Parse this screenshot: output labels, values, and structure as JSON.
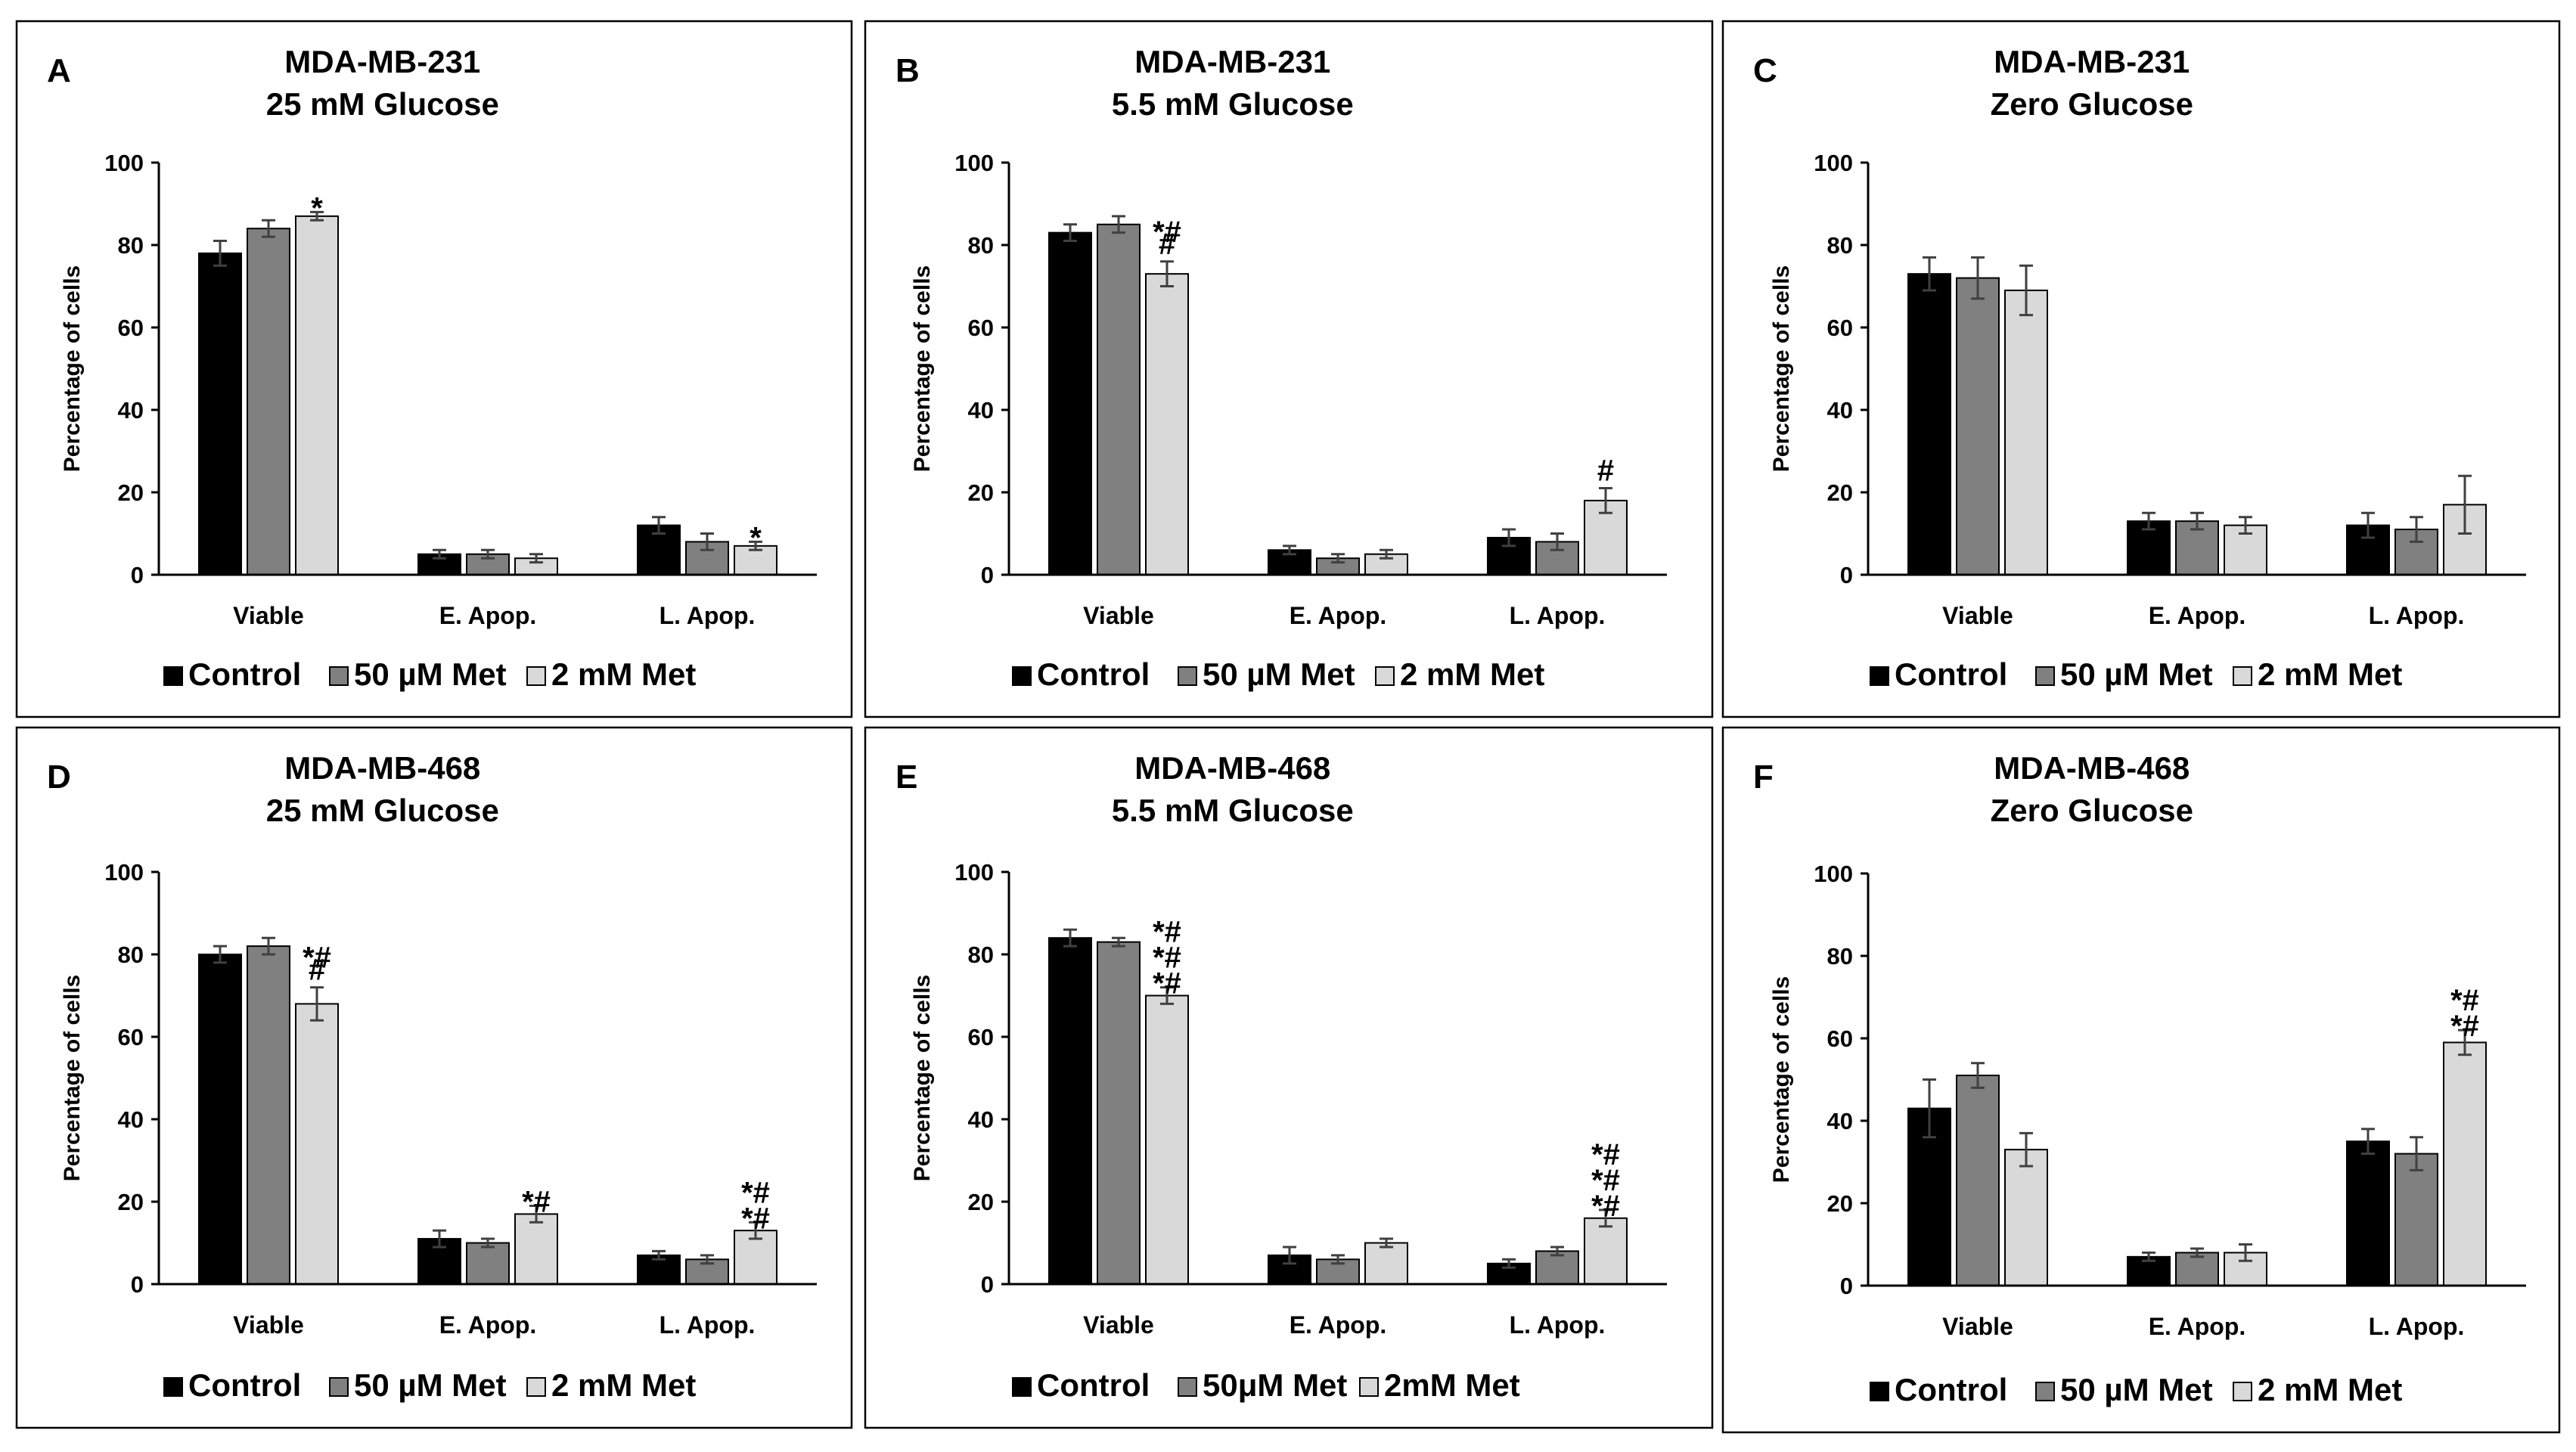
{
  "figure": {
    "colors": {
      "control": "#000000",
      "met_low": "#808080",
      "met_high": "#d9d9d9"
    }
  },
  "chart_data": [
    {
      "type": "bar",
      "letter": "A",
      "title": [
        "MDA-MB-231",
        "25 mM Glucose"
      ],
      "ylabel": "Percentage of cells",
      "ylim": [
        0,
        100
      ],
      "yticks": [
        "0",
        "20",
        "40",
        "60",
        "80",
        "100"
      ],
      "categories": [
        "Viable",
        "E. Apop.",
        "L. Apop."
      ],
      "series": [
        {
          "name": "Control",
          "values": [
            78,
            5,
            12
          ],
          "errors": [
            3,
            1,
            2
          ]
        },
        {
          "name": "50 µM Met",
          "values": [
            84,
            5,
            8
          ],
          "errors": [
            2,
            1,
            2
          ]
        },
        {
          "name": "2 mM Met",
          "values": [
            87,
            4,
            7
          ],
          "errors": [
            1,
            1,
            1
          ]
        }
      ],
      "annotations": [
        {
          "category": 0,
          "series": 2,
          "label": "*"
        },
        {
          "category": 2,
          "series": 2,
          "label": "*"
        }
      ]
    },
    {
      "type": "bar",
      "letter": "B",
      "title": [
        "MDA-MB-231",
        "5.5 mM Glucose"
      ],
      "ylabel": "Percentage of cells",
      "ylim": [
        0,
        100
      ],
      "yticks": [
        "0",
        "20",
        "40",
        "60",
        "80",
        "100"
      ],
      "categories": [
        "Viable",
        "E. Apop.",
        "L. Apop."
      ],
      "series": [
        {
          "name": "Control",
          "values": [
            83,
            6,
            9
          ],
          "errors": [
            2,
            1,
            2
          ]
        },
        {
          "name": "50 µM Met",
          "values": [
            85,
            4,
            8
          ],
          "errors": [
            2,
            1,
            2
          ]
        },
        {
          "name": "2 mM Met",
          "values": [
            73,
            5,
            18
          ],
          "errors": [
            3,
            1,
            3
          ]
        }
      ],
      "annotations": [
        {
          "category": 0,
          "series": 2,
          "label": "*##"
        },
        {
          "category": 2,
          "series": 2,
          "label": "#"
        }
      ]
    },
    {
      "type": "bar",
      "letter": "C",
      "title": [
        "MDA-MB-231",
        "Zero Glucose"
      ],
      "ylabel": "Percentage of cells",
      "ylim": [
        0,
        100
      ],
      "yticks": [
        "0",
        "20",
        "40",
        "60",
        "80",
        "100"
      ],
      "categories": [
        "Viable",
        "E. Apop.",
        "L. Apop."
      ],
      "series": [
        {
          "name": "Control",
          "values": [
            73,
            13,
            12
          ],
          "errors": [
            4,
            2,
            3
          ]
        },
        {
          "name": "50 µM Met",
          "values": [
            72,
            13,
            11
          ],
          "errors": [
            5,
            2,
            3
          ]
        },
        {
          "name": "2 mM Met",
          "values": [
            69,
            12,
            17
          ],
          "errors": [
            6,
            2,
            7
          ]
        }
      ],
      "annotations": []
    },
    {
      "type": "bar",
      "letter": "D",
      "title": [
        "MDA-MB-468",
        "25 mM Glucose"
      ],
      "ylabel": "Percentage of cells",
      "ylim": [
        0,
        100
      ],
      "yticks": [
        "0",
        "20",
        "40",
        "60",
        "80",
        "100"
      ],
      "categories": [
        "Viable",
        "E. Apop.",
        "L. Apop."
      ],
      "series": [
        {
          "name": "Control",
          "values": [
            80,
            11,
            7
          ],
          "errors": [
            2,
            2,
            1
          ]
        },
        {
          "name": "50 µM Met",
          "values": [
            82,
            10,
            6
          ],
          "errors": [
            2,
            1,
            1
          ]
        },
        {
          "name": "2 mM Met",
          "values": [
            68,
            17,
            13
          ],
          "errors": [
            4,
            2,
            2
          ]
        }
      ],
      "annotations": [
        {
          "category": 0,
          "series": 2,
          "label": "*##"
        },
        {
          "category": 1,
          "series": 2,
          "label": "*#"
        },
        {
          "category": 2,
          "series": 2,
          "label": "**##"
        }
      ]
    },
    {
      "type": "bar",
      "letter": "E",
      "title": [
        "MDA-MB-468",
        "5.5 mM Glucose"
      ],
      "ylabel": "Percentage of cells",
      "ylim": [
        0,
        100
      ],
      "yticks": [
        "0",
        "20",
        "40",
        "60",
        "80",
        "100"
      ],
      "categories": [
        "Viable",
        "E. Apop.",
        "L. Apop."
      ],
      "series": [
        {
          "name": "Control",
          "values": [
            84,
            7,
            5
          ],
          "errors": [
            2,
            2,
            1
          ]
        },
        {
          "name": "50μM Met",
          "values": [
            83,
            6,
            8
          ],
          "errors": [
            1,
            1,
            1
          ]
        },
        {
          "name": "2mM Met",
          "values": [
            70,
            10,
            16
          ],
          "errors": [
            2,
            1,
            2
          ]
        }
      ],
      "annotations": [
        {
          "category": 0,
          "series": 2,
          "label": "***###"
        },
        {
          "category": 2,
          "series": 2,
          "label": "***###"
        }
      ]
    },
    {
      "type": "bar",
      "letter": "F",
      "title": [
        "MDA-MB-468",
        "Zero Glucose"
      ],
      "ylabel": "Percentage of cells",
      "ylim": [
        0,
        100
      ],
      "yticks": [
        "0",
        "20",
        "40",
        "60",
        "80",
        "100"
      ],
      "categories": [
        "Viable",
        "E. Apop.",
        "L. Apop."
      ],
      "series": [
        {
          "name": "Control",
          "values": [
            43,
            7,
            35
          ],
          "errors": [
            7,
            1,
            3
          ]
        },
        {
          "name": "50 µM Met",
          "values": [
            51,
            8,
            32
          ],
          "errors": [
            3,
            1,
            4
          ]
        },
        {
          "name": "2 mM Met",
          "values": [
            33,
            8,
            59
          ],
          "errors": [
            4,
            2,
            3
          ]
        }
      ],
      "annotations": [
        {
          "category": 2,
          "series": 2,
          "label": "**##"
        }
      ]
    }
  ]
}
